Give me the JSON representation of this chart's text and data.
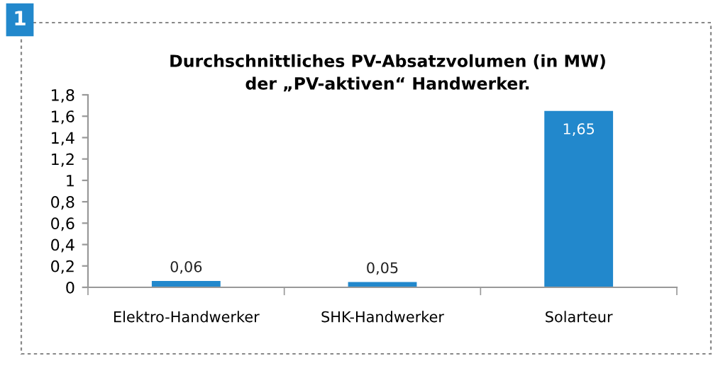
{
  "chart_data": {
    "type": "bar",
    "title": "Durchschnittliches PV-Absatzvolumen (in MW)\nder „PV-aktiven“ Handwerker.",
    "annotations": [
      "1"
    ],
    "categories": [
      "Elektro-Handwerker",
      "SHK-Handwerker",
      "Solarteur"
    ],
    "values": [
      0.06,
      0.05,
      1.65
    ],
    "value_labels": [
      "0,06",
      "0,05",
      "1,65"
    ],
    "color": "#2288cc",
    "ylim": [
      0,
      1.8
    ],
    "yticks": [
      0,
      {
        "value": 0.2,
        "label": "0,2"
      },
      {
        "value": 0.4,
        "label": "0,4"
      },
      {
        "value": 0.6,
        "label": "0,6"
      },
      {
        "value": 0.8,
        "label": "0,8"
      },
      1,
      {
        "value": 1.2,
        "label": "1,2"
      },
      {
        "value": 1.4,
        "label": "1,4"
      },
      {
        "value": 1.6,
        "label": "1,6"
      },
      {
        "value": 1.8,
        "label": "1,8"
      }
    ],
    "grid": false,
    "legend": false
  }
}
